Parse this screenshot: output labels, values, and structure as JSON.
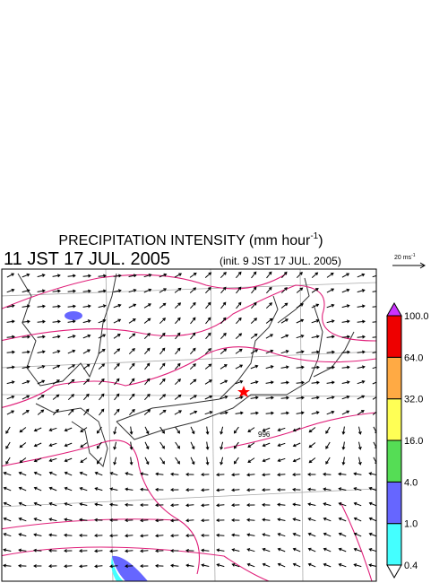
{
  "header": {
    "title_main": "PRECIPITATION INTENSITY (mm hour",
    "title_sup": "-1",
    "title_end": ")",
    "valid_time": "11 JST 17 JUL. 2005",
    "init_time": "(init. 9 JST 17 JUL. 2005)"
  },
  "reference_vector": {
    "label_main": "20 ms",
    "label_sup": "-1"
  },
  "map": {
    "contour_label": "996"
  },
  "legend": {
    "levels": [
      {
        "label": "0.4",
        "color": "#44ffff"
      },
      {
        "label": "1.0",
        "color": "#6666ff"
      },
      {
        "label": "4.0",
        "color": "#55dd55"
      },
      {
        "label": "16.0",
        "color": "#ffff55"
      },
      {
        "label": "32.0",
        "color": "#ffaa44"
      },
      {
        "label": "64.0",
        "color": "#ee0000"
      },
      {
        "label": "100.0",
        "color": "#cc33ff"
      }
    ]
  }
}
